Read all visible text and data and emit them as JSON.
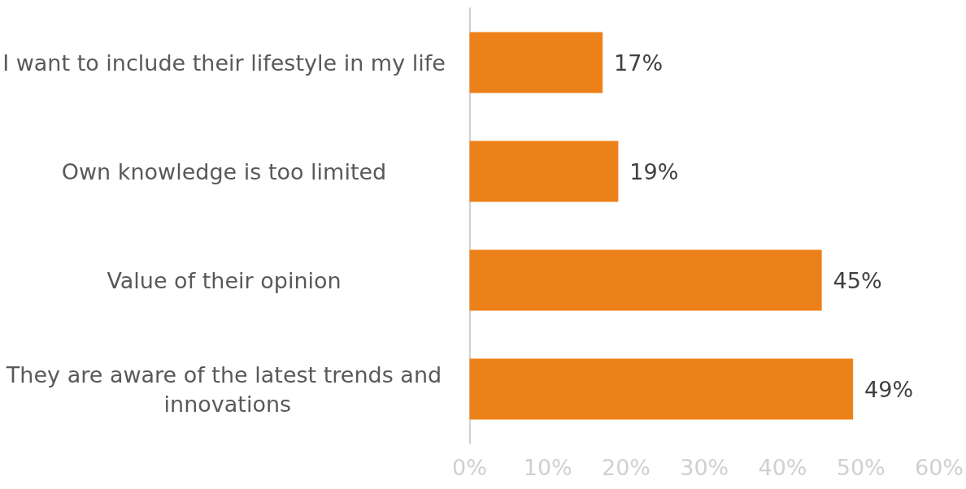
{
  "chart_data": {
    "type": "bar",
    "orientation": "horizontal",
    "categories": [
      "I want to include their lifestyle in my life",
      "Own knowledge is too limited",
      "Value of their opinion",
      "They are aware of the latest trends and innovations"
    ],
    "values": [
      17,
      19,
      45,
      49
    ],
    "color": "#ed8119",
    "value_labels": [
      "17%",
      "19%",
      "45%",
      "49%"
    ],
    "xlim": [
      0,
      60
    ],
    "xticks": [
      {
        "value": 0,
        "label": "0%"
      },
      {
        "value": 10,
        "label": "10%"
      },
      {
        "value": 20,
        "label": "20%"
      },
      {
        "value": 30,
        "label": "30%"
      },
      {
        "value": 40,
        "label": "40%"
      },
      {
        "value": 50,
        "label": "50%"
      },
      {
        "value": 60,
        "label": "60%"
      }
    ],
    "grid": false
  }
}
